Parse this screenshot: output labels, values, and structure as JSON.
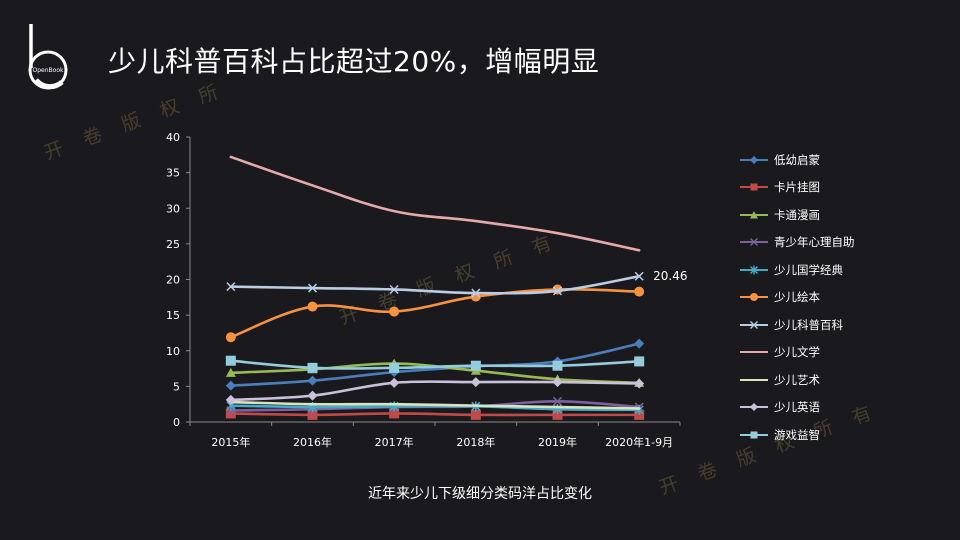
{
  "title": "少儿科普百科占比超过20%，增幅明显",
  "logo_text": "OpenBook",
  "watermark": [
    "开",
    "卷",
    "版",
    "权",
    "所",
    "有"
  ],
  "caption": "近年来少儿下级细分类码洋占比变化",
  "chart_data": {
    "type": "line",
    "title": "",
    "xlabel": "",
    "ylabel": "",
    "categories": [
      "2015年",
      "2016年",
      "2017年",
      "2018年",
      "2019年",
      "2020年1-9月"
    ],
    "ylim": [
      0,
      40
    ],
    "yticks": [
      0,
      5,
      10,
      15,
      20,
      25,
      30,
      35,
      40
    ],
    "grid": false,
    "legend": "right",
    "series": [
      {
        "name": "低幼启蒙",
        "color": "#4a7ebb",
        "marker": "diamond",
        "values": [
          5.1,
          5.8,
          7.0,
          7.8,
          8.5,
          11.0
        ]
      },
      {
        "name": "卡片挂图",
        "color": "#be4b48",
        "marker": "square",
        "values": [
          1.2,
          1.0,
          1.2,
          1.0,
          1.0,
          1.0
        ]
      },
      {
        "name": "卡通漫画",
        "color": "#98b954",
        "marker": "triangle",
        "values": [
          6.9,
          7.4,
          8.2,
          7.2,
          6.0,
          5.5
        ]
      },
      {
        "name": "青少年心理自助",
        "color": "#7d60a0",
        "marker": "x",
        "values": [
          1.6,
          1.8,
          2.1,
          2.2,
          2.9,
          2.1
        ]
      },
      {
        "name": "少儿国学经典",
        "color": "#46aac5",
        "marker": "star",
        "values": [
          2.3,
          2.1,
          2.2,
          2.2,
          1.8,
          1.7
        ]
      },
      {
        "name": "少儿绘本",
        "color": "#f69240",
        "marker": "circle",
        "values": [
          11.9,
          16.2,
          15.5,
          17.6,
          18.6,
          18.3
        ]
      },
      {
        "name": "少儿科普百科",
        "color": "#b9cde5",
        "marker": "x",
        "values": [
          19.0,
          18.8,
          18.6,
          18.1,
          18.4,
          20.46
        ]
      },
      {
        "name": "少儿文学",
        "color": "#e6a9aa",
        "marker": "none",
        "values": [
          37.2,
          33.2,
          29.6,
          28.2,
          26.5,
          24.1
        ]
      },
      {
        "name": "少儿艺术",
        "color": "#d7e4bd",
        "marker": "none",
        "values": [
          2.8,
          2.5,
          2.5,
          2.3,
          2.1,
          1.9
        ]
      },
      {
        "name": "少儿英语",
        "color": "#ccc1da",
        "marker": "diamond",
        "values": [
          3.1,
          3.7,
          5.5,
          5.6,
          5.6,
          5.4
        ]
      },
      {
        "name": "游戏益智",
        "color": "#93cddd",
        "marker": "square",
        "values": [
          8.6,
          7.6,
          7.6,
          7.9,
          7.9,
          8.5
        ]
      }
    ],
    "annotations": [
      {
        "series": "少儿科普百科",
        "category": "2020年1-9月",
        "text": "20.46"
      }
    ]
  }
}
